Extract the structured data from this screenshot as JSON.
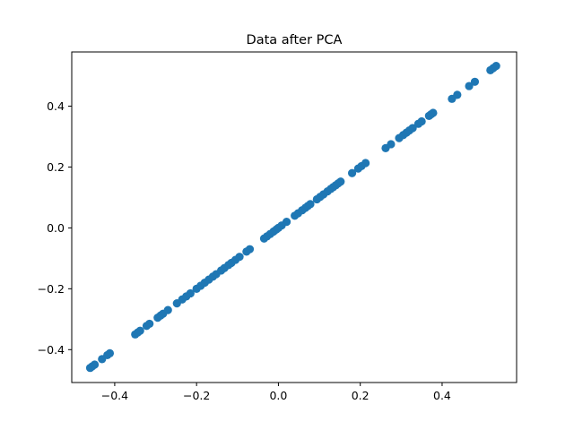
{
  "chart_data": {
    "type": "scatter",
    "title": "Data after PCA",
    "xlabel": "",
    "ylabel": "",
    "xlim": [
      -0.505,
      0.582
    ],
    "ylim": [
      -0.508,
      0.578
    ],
    "xticks": [
      -0.4,
      -0.2,
      0.0,
      0.2,
      0.4
    ],
    "yticks": [
      -0.4,
      -0.2,
      0.0,
      0.2,
      0.4
    ],
    "xtick_labels": [
      "−0.4",
      "−0.2",
      "0.0",
      "0.2",
      "0.4"
    ],
    "ytick_labels": [
      "−0.4",
      "−0.2",
      "0.0",
      "0.2",
      "0.4"
    ],
    "grid": false,
    "marker_color": "#1f77b4",
    "series": [
      {
        "x": [
          -0.46,
          -0.455,
          -0.449,
          -0.431,
          -0.418,
          -0.412,
          -0.35,
          -0.344,
          -0.338,
          -0.322,
          -0.315,
          -0.295,
          -0.288,
          -0.282,
          -0.27,
          -0.248,
          -0.235,
          -0.225,
          -0.215,
          -0.2,
          -0.19,
          -0.18,
          -0.17,
          -0.16,
          -0.152,
          -0.14,
          -0.132,
          -0.122,
          -0.115,
          -0.105,
          -0.095,
          -0.078,
          -0.07,
          -0.035,
          -0.028,
          -0.02,
          -0.012,
          -0.005,
          0.0,
          0.008,
          0.02,
          0.04,
          0.048,
          0.058,
          0.066,
          0.072,
          0.078,
          0.094,
          0.102,
          0.11,
          0.12,
          0.128,
          0.134,
          0.14,
          0.146,
          0.152,
          0.18,
          0.195,
          0.203,
          0.213,
          0.262,
          0.275,
          0.295,
          0.305,
          0.313,
          0.32,
          0.328,
          0.342,
          0.35,
          0.368,
          0.373,
          0.378,
          0.424,
          0.437,
          0.466,
          0.48,
          0.518,
          0.525,
          0.532
        ],
        "y": [
          -0.46,
          -0.455,
          -0.449,
          -0.431,
          -0.418,
          -0.412,
          -0.35,
          -0.344,
          -0.338,
          -0.322,
          -0.315,
          -0.295,
          -0.288,
          -0.282,
          -0.27,
          -0.248,
          -0.235,
          -0.225,
          -0.215,
          -0.2,
          -0.19,
          -0.18,
          -0.17,
          -0.16,
          -0.152,
          -0.14,
          -0.132,
          -0.122,
          -0.115,
          -0.105,
          -0.095,
          -0.078,
          -0.07,
          -0.035,
          -0.028,
          -0.02,
          -0.012,
          -0.005,
          0.0,
          0.008,
          0.02,
          0.04,
          0.048,
          0.058,
          0.066,
          0.072,
          0.078,
          0.094,
          0.102,
          0.11,
          0.12,
          0.128,
          0.134,
          0.14,
          0.146,
          0.152,
          0.18,
          0.195,
          0.203,
          0.213,
          0.262,
          0.275,
          0.295,
          0.305,
          0.313,
          0.32,
          0.328,
          0.342,
          0.35,
          0.368,
          0.373,
          0.378,
          0.424,
          0.437,
          0.466,
          0.48,
          0.518,
          0.525,
          0.532
        ]
      }
    ]
  }
}
